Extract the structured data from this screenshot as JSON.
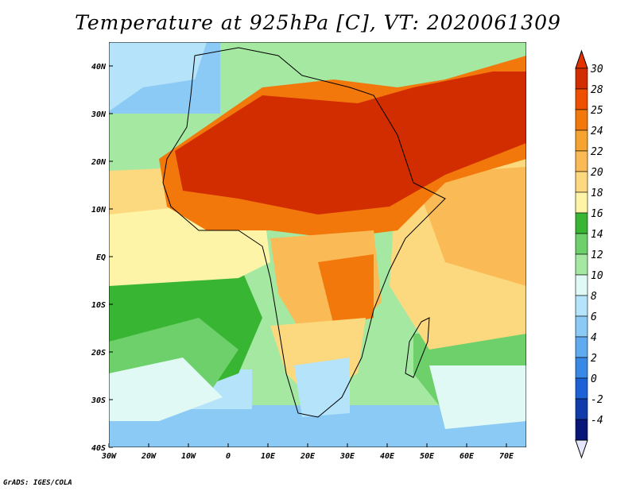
{
  "title": "Temperature at 925hPa [C], VT: 2020061309",
  "credit": "GrADS: IGES/COLA",
  "map": {
    "lon_range": [
      -30,
      75
    ],
    "lat_range": [
      -40,
      45
    ],
    "lon_ticks": [
      {
        "value": -30,
        "label": "30W"
      },
      {
        "value": -20,
        "label": "20W"
      },
      {
        "value": -10,
        "label": "10W"
      },
      {
        "value": 0,
        "label": "0"
      },
      {
        "value": 10,
        "label": "10E"
      },
      {
        "value": 20,
        "label": "20E"
      },
      {
        "value": 30,
        "label": "30E"
      },
      {
        "value": 40,
        "label": "40E"
      },
      {
        "value": 50,
        "label": "50E"
      },
      {
        "value": 60,
        "label": "60E"
      },
      {
        "value": 70,
        "label": "70E"
      }
    ],
    "lat_ticks": [
      {
        "value": 40,
        "label": "40N"
      },
      {
        "value": 30,
        "label": "30N"
      },
      {
        "value": 20,
        "label": "20N"
      },
      {
        "value": 10,
        "label": "10N"
      },
      {
        "value": 0,
        "label": "EQ"
      },
      {
        "value": -10,
        "label": "10S"
      },
      {
        "value": -20,
        "label": "20S"
      },
      {
        "value": -30,
        "label": "30S"
      },
      {
        "value": -40,
        "label": "40S"
      }
    ]
  },
  "colorbar": {
    "labels": [
      "30",
      "28",
      "25",
      "24",
      "22",
      "20",
      "18",
      "16",
      "14",
      "12",
      "10",
      "8",
      "6",
      "4",
      "2",
      "0",
      "-2",
      "-4"
    ],
    "colors": [
      "#d22d00",
      "#ef5000",
      "#f3780c",
      "#f7a331",
      "#fabb56",
      "#fcd97f",
      "#fdf4a8",
      "#39b534",
      "#6dd06a",
      "#a5e8a2",
      "#e1f9f5",
      "#b4e3fa",
      "#8ccaf6",
      "#60aaef",
      "#3888e6",
      "#1c62d6",
      "#0f3caa",
      "#08167a"
    ],
    "top_color": "#e33200",
    "bottom_color": "#e6e6ff"
  }
}
